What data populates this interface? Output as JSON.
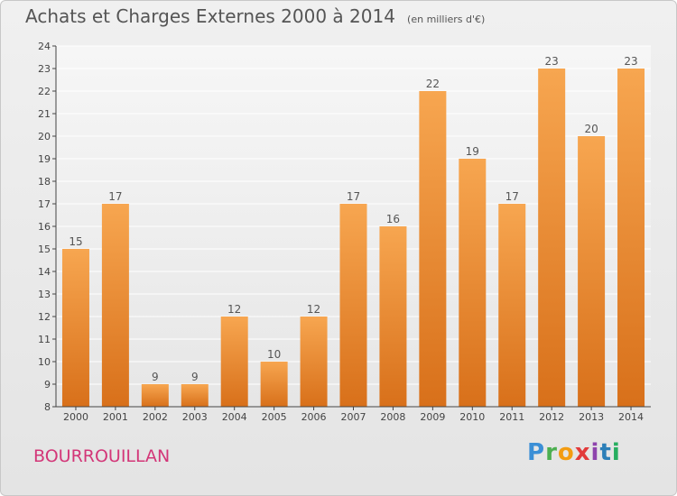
{
  "header": {
    "title": "Achats et Charges Externes 2000 à 2014",
    "unit": "(en milliers d'€)"
  },
  "footer": {
    "commune": "BOURROUILLAN",
    "logo_text": "Proxiti"
  },
  "colors": {
    "bar_top": "#f7a650",
    "bar_bottom": "#d8701a",
    "title": "#555555",
    "commune": "#d33678"
  },
  "chart_data": {
    "type": "bar",
    "categories": [
      "2000",
      "2001",
      "2002",
      "2003",
      "2004",
      "2005",
      "2006",
      "2007",
      "2008",
      "2009",
      "2010",
      "2011",
      "2012",
      "2013",
      "2014"
    ],
    "values": [
      15,
      17,
      9,
      9,
      12,
      10,
      12,
      17,
      16,
      22,
      19,
      17,
      23,
      20,
      23
    ],
    "title": "Achats et Charges Externes 2000 à 2014",
    "subtitle": "(en milliers d'€)",
    "xlabel": "",
    "ylabel": "",
    "ylim": [
      8,
      24
    ],
    "yticks": [
      8,
      9,
      10,
      11,
      12,
      13,
      14,
      15,
      16,
      17,
      18,
      19,
      20,
      21,
      22,
      23,
      24
    ],
    "grid": true,
    "data_labels": true
  }
}
